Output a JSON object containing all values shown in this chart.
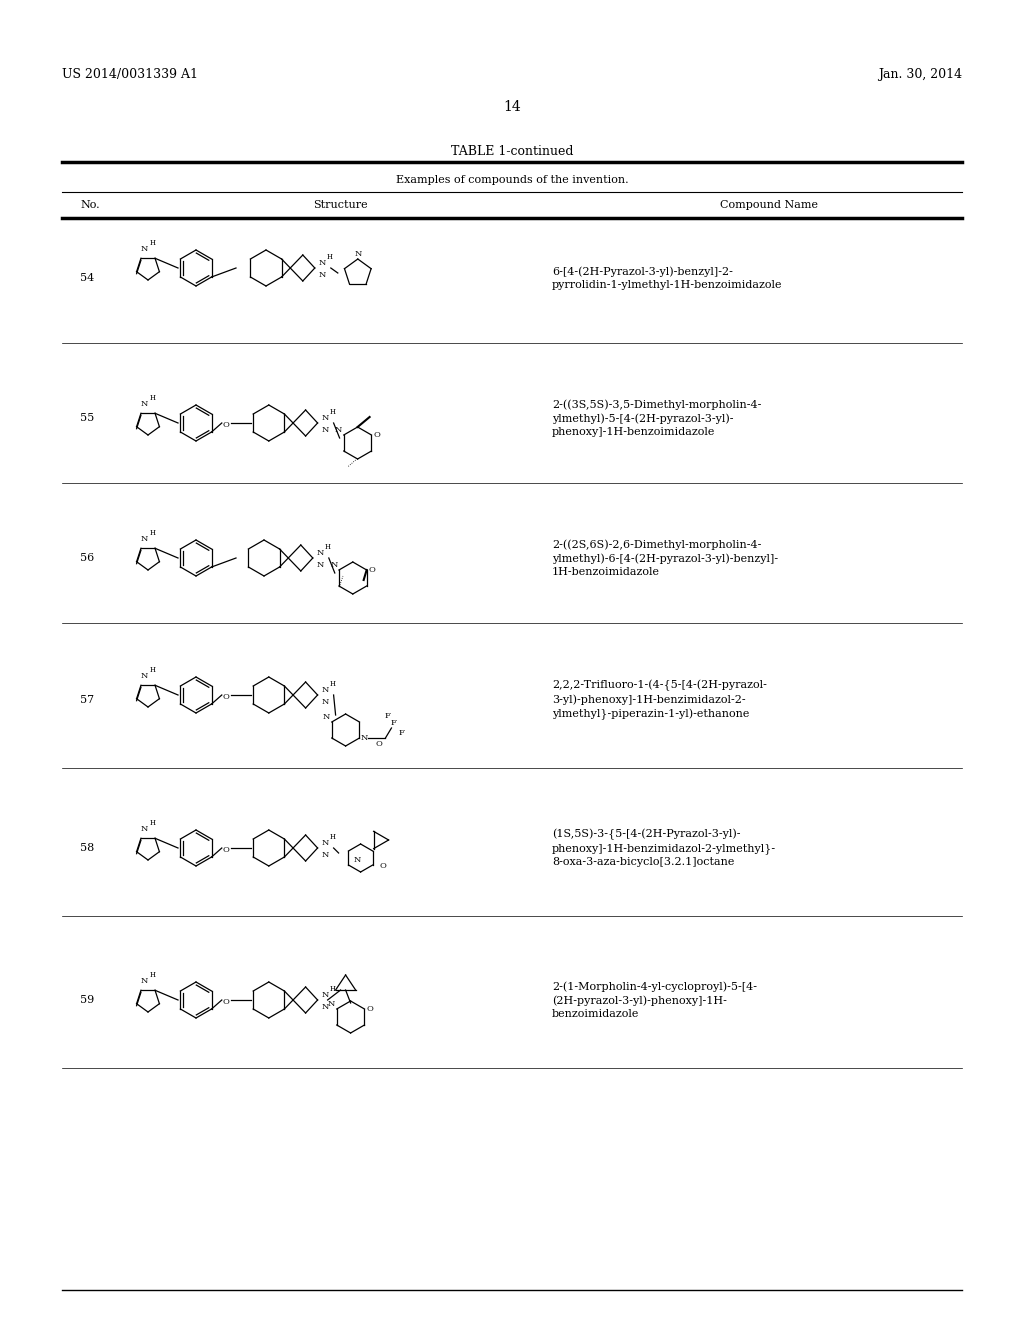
{
  "background_color": "#ffffff",
  "page_number": "14",
  "patent_number": "US 2014/0031339 A1",
  "patent_date": "Jan. 30, 2014",
  "table_title": "TABLE 1-continued",
  "table_subtitle": "Examples of compounds of the invention.",
  "col_headers": [
    "No.",
    "Structure",
    "Compound Name"
  ],
  "compounds": [
    {
      "no": "54",
      "name": "6-[4-(2H-Pyrazol-3-yl)-benzyl]-2-\npyrrolidin-1-ylmethyl-1H-benzoimidazole"
    },
    {
      "no": "55",
      "name": "2-((3S,5S)-3,5-Dimethyl-morpholin-4-\nylmethyl)-5-[4-(2H-pyrazol-3-yl)-\nphenoxy]-1H-benzoimidazole"
    },
    {
      "no": "56",
      "name": "2-((2S,6S)-2,6-Dimethyl-morpholin-4-\nylmethyl)-6-[4-(2H-pyrazol-3-yl)-benzyl]-\n1H-benzoimidazole"
    },
    {
      "no": "57",
      "name": "2,2,2-Trifluoro-1-(4-{5-[4-(2H-pyrazol-\n3-yl)-phenoxy]-1H-benzimidazol-2-\nylmethyl}-piperazin-1-yl)-ethanone"
    },
    {
      "no": "58",
      "name": "(1S,5S)-3-{5-[4-(2H-Pyrazol-3-yl)-\nphenoxy]-1H-benzimidazol-2-ylmethyl}-\n8-oxa-3-aza-bicyclo[3.2.1]octane"
    },
    {
      "no": "59",
      "name": "2-(1-Morpholin-4-yl-cycloproyl)-5-[4-\n(2H-pyrazol-3-yl)-phenoxy]-1H-\nbenzoimidazole"
    }
  ],
  "font_size_header": 9,
  "font_size_body": 8,
  "font_size_page": 9,
  "font_size_table_title": 9,
  "text_color": "#000000",
  "line_color": "#000000"
}
